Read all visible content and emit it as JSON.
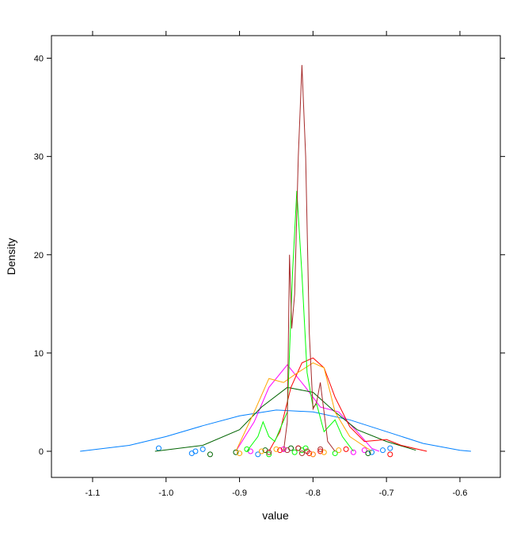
{
  "chart_data": {
    "type": "density",
    "x_label": "value",
    "y_label": "Density",
    "xlim": [
      -1.156,
      -0.545
    ],
    "ylim": [
      -2.66,
      42.3
    ],
    "xticks": [
      -1.1,
      {
        "value": -1,
        "label": "-1.0"
      },
      -0.9,
      -0.8,
      -0.7,
      -0.6
    ],
    "yticks": [
      0,
      10,
      20,
      30,
      40
    ],
    "series": [
      {
        "color": "#0080ff",
        "x": [
          -1.117,
          -1.05,
          -1.0,
          -0.95,
          -0.9,
          -0.85,
          -0.8,
          -0.75,
          -0.7,
          -0.65,
          -0.6,
          -0.585
        ],
        "values": [
          0,
          0.6,
          1.5,
          2.6,
          3.6,
          4.2,
          4.0,
          3.2,
          2.0,
          0.8,
          0.1,
          0
        ],
        "points": [
          -1.01,
          -0.965,
          -0.96,
          -0.95,
          -0.875,
          -0.72,
          -0.705,
          -0.695
        ]
      },
      {
        "color": "#ff00ff",
        "x": [
          -0.905,
          -0.88,
          -0.86,
          -0.835,
          -0.81,
          -0.79,
          -0.765,
          -0.74,
          -0.72,
          -0.71
        ],
        "values": [
          0,
          3,
          6.5,
          8.8,
          6.5,
          4.5,
          4,
          2,
          0.3,
          0
        ],
        "points": [
          -0.885,
          -0.84,
          -0.8,
          -0.745,
          -0.73
        ]
      },
      {
        "color": "#006400",
        "x": [
          -1.015,
          -0.95,
          -0.9,
          -0.87,
          -0.835,
          -0.8,
          -0.77,
          -0.74,
          -0.7,
          -0.66
        ],
        "values": [
          0,
          0.6,
          2.2,
          4.5,
          6.5,
          6.0,
          4.0,
          2.2,
          1.0,
          0.1
        ],
        "points": [
          -0.94,
          -0.905,
          -0.865,
          -0.83,
          -0.725
        ]
      },
      {
        "color": "#ff0000",
        "x": [
          -0.86,
          -0.845,
          -0.83,
          -0.815,
          -0.8,
          -0.785,
          -0.77,
          -0.75,
          -0.73,
          -0.7,
          -0.68,
          -0.645
        ],
        "values": [
          0,
          2,
          6.5,
          9,
          9.5,
          8.5,
          5.5,
          2.5,
          1.0,
          1.2,
          0.6,
          0
        ],
        "points": [
          -0.845,
          -0.82,
          -0.805,
          -0.79,
          -0.755,
          -0.695
        ]
      },
      {
        "color": "#ffa500",
        "x": [
          -0.905,
          -0.88,
          -0.86,
          -0.84,
          -0.825,
          -0.8,
          -0.785,
          -0.77,
          -0.75,
          -0.72
        ],
        "values": [
          0,
          4,
          7.4,
          7,
          7.8,
          9,
          8.5,
          4,
          1.5,
          0
        ],
        "points": [
          -0.9,
          -0.87,
          -0.85,
          -0.8,
          -0.785,
          -0.765
        ]
      },
      {
        "color": "#00ff00",
        "x": [
          -0.89,
          -0.875,
          -0.868,
          -0.86,
          -0.852,
          -0.835,
          -0.828,
          -0.822,
          -0.815,
          -0.808,
          -0.8,
          -0.795,
          -0.785,
          -0.77,
          -0.76,
          -0.745
        ],
        "values": [
          0,
          1.5,
          3,
          1.5,
          1,
          4,
          18,
          26.5,
          18,
          8,
          4.5,
          4.8,
          2,
          3.2,
          1.5,
          0
        ],
        "points": [
          -0.89,
          -0.86,
          -0.825,
          -0.815,
          -0.81,
          -0.77
        ]
      },
      {
        "color": "#a52a2a",
        "x": [
          -0.84,
          -0.835,
          -0.832,
          -0.829,
          -0.825,
          -0.82,
          -0.815,
          -0.81,
          -0.805,
          -0.8,
          -0.795,
          -0.79,
          -0.785,
          -0.78,
          -0.77
        ],
        "values": [
          0,
          3,
          20,
          12.5,
          16,
          30,
          39.3,
          30,
          12,
          4.3,
          5,
          7,
          4,
          1,
          0
        ],
        "points": [
          -0.86,
          -0.835,
          -0.82,
          -0.815,
          -0.808,
          -0.79
        ]
      }
    ]
  }
}
